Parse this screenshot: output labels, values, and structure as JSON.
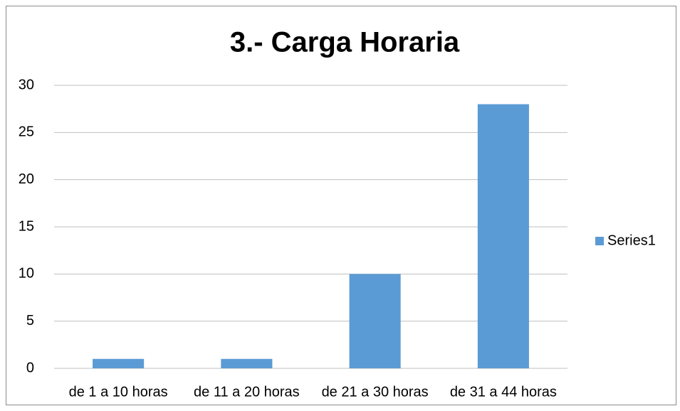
{
  "chart_data": {
    "type": "bar",
    "title": "3.- Carga Horaria",
    "categories": [
      "de 1 a 10 horas",
      "de 11 a 20 horas",
      "de 21 a 30 horas",
      "de 31 a 44 horas"
    ],
    "series": [
      {
        "name": "Series1",
        "color": "#5b9bd5",
        "values": [
          1,
          1,
          10,
          28
        ]
      }
    ],
    "ylim": [
      0,
      30
    ],
    "yticks": [
      0,
      5,
      10,
      15,
      20,
      25,
      30
    ],
    "grid": true,
    "legend": "right"
  }
}
